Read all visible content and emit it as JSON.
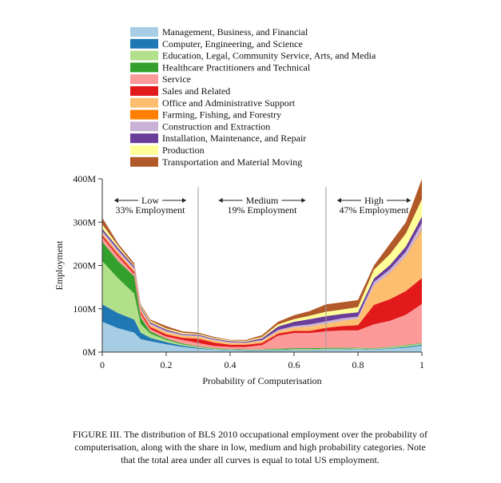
{
  "chart_data": {
    "type": "stacked-area",
    "x_label": "Probability of Computerisation",
    "y_label": "Employment",
    "x": [
      0,
      0.05,
      0.1,
      0.12,
      0.15,
      0.2,
      0.25,
      0.3,
      0.35,
      0.4,
      0.45,
      0.5,
      0.55,
      0.6,
      0.65,
      0.7,
      0.75,
      0.8,
      0.85,
      0.9,
      0.95,
      1
    ],
    "xlim": [
      0,
      1
    ],
    "xticks": [
      0,
      0.2,
      0.4,
      0.6,
      0.8,
      1
    ],
    "ylim": [
      0,
      400
    ],
    "yticks": [
      {
        "value": 0,
        "label": "0M"
      },
      {
        "value": 100,
        "label": "100M"
      },
      {
        "value": 200,
        "label": "200M"
      },
      {
        "value": 300,
        "label": "300M"
      },
      {
        "value": 400,
        "label": "400M"
      }
    ],
    "dividers": [
      0.3,
      0.7
    ],
    "annotations": [
      {
        "title": "Low",
        "text": "33% Employment",
        "x": 0.15
      },
      {
        "title": "Medium",
        "text": "19% Employment",
        "x": 0.5
      },
      {
        "title": "High",
        "text": "47% Employment",
        "x": 0.85
      }
    ],
    "series": [
      {
        "name": "Management, Business, and Financial",
        "color": "#a6cde3",
        "values": [
          70,
          55,
          45,
          30,
          25,
          18,
          12,
          8,
          5,
          4,
          3,
          3,
          3,
          4,
          4,
          5,
          5,
          6,
          5,
          8,
          10,
          15
        ]
      },
      {
        "name": "Computer, Engineering, and Science",
        "color": "#1f78b4",
        "values": [
          40,
          35,
          30,
          15,
          8,
          5,
          3,
          2,
          1,
          1,
          1,
          1,
          1,
          1,
          1,
          1,
          1,
          1,
          1,
          1,
          2,
          2
        ]
      },
      {
        "name": "Education, Legal, Community Service, Arts, and Media",
        "color": "#b2df8a",
        "values": [
          100,
          80,
          60,
          20,
          10,
          5,
          3,
          2,
          2,
          1,
          1,
          1,
          2,
          2,
          2,
          2,
          2,
          2,
          2,
          2,
          3,
          3
        ]
      },
      {
        "name": "Healthcare Practitioners and Technical",
        "color": "#33a02c",
        "values": [
          45,
          40,
          40,
          15,
          5,
          3,
          2,
          1,
          1,
          1,
          1,
          1,
          2,
          2,
          2,
          2,
          2,
          1,
          1,
          1,
          1,
          1
        ]
      },
      {
        "name": "Service",
        "color": "#fb9a99",
        "values": [
          10,
          10,
          5,
          8,
          5,
          5,
          8,
          8,
          5,
          5,
          6,
          10,
          30,
          35,
          35,
          38,
          40,
          40,
          55,
          60,
          70,
          90
        ]
      },
      {
        "name": "Sales and Related",
        "color": "#e31a1c",
        "values": [
          5,
          5,
          5,
          5,
          5,
          5,
          5,
          10,
          8,
          5,
          5,
          5,
          5,
          5,
          5,
          8,
          10,
          12,
          45,
          50,
          55,
          60
        ]
      },
      {
        "name": "Office and Administrative Support",
        "color": "#fdbf6f",
        "values": [
          5,
          5,
          5,
          5,
          5,
          5,
          5,
          5,
          5,
          4,
          4,
          5,
          5,
          8,
          10,
          10,
          12,
          15,
          45,
          60,
          80,
          110
        ]
      },
      {
        "name": "Farming, Fishing, and Forestry",
        "color": "#ff7f00",
        "values": [
          0,
          0,
          0,
          0,
          0,
          0,
          0,
          0,
          0,
          0,
          0,
          0,
          0,
          0,
          0,
          0,
          0,
          0,
          0,
          1,
          1,
          2
        ]
      },
      {
        "name": "Construction and Extraction",
        "color": "#cab2d6",
        "values": [
          5,
          5,
          4,
          3,
          3,
          3,
          2,
          2,
          2,
          2,
          1,
          2,
          3,
          3,
          5,
          5,
          6,
          5,
          8,
          8,
          10,
          15
        ]
      },
      {
        "name": "Installation, Maintenance, and Repair",
        "color": "#6a3d9a",
        "values": [
          5,
          5,
          4,
          3,
          3,
          3,
          2,
          2,
          2,
          2,
          2,
          4,
          8,
          10,
          12,
          12,
          10,
          10,
          8,
          10,
          12,
          15
        ]
      },
      {
        "name": "Production",
        "color": "#ffff99",
        "values": [
          10,
          5,
          2,
          3,
          3,
          3,
          3,
          2,
          2,
          2,
          2,
          3,
          5,
          6,
          8,
          10,
          10,
          12,
          20,
          25,
          30,
          40
        ]
      },
      {
        "name": "Transportation and Material Moving",
        "color": "#b15928",
        "values": [
          15,
          5,
          5,
          3,
          3,
          5,
          3,
          3,
          2,
          1,
          2,
          4,
          6,
          9,
          11,
          17,
          17,
          16,
          10,
          24,
          26,
          47
        ]
      }
    ]
  },
  "caption": [
    "FIGURE III. The distribution of BLS 2010 occupational employment over the probability of",
    "computerisation, along with the share in low, medium and high probability categories. Note",
    "that the total area under all curves is equal to total US employment."
  ]
}
